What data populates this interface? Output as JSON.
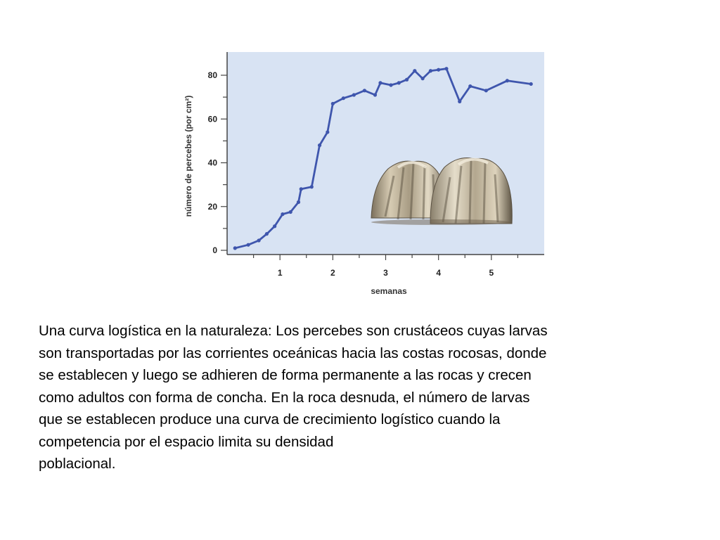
{
  "chart_data": {
    "type": "line",
    "title": "",
    "xlabel": "semanas",
    "ylabel": "número de percebes (por cm²)",
    "xlim": [
      0,
      6
    ],
    "ylim": [
      0,
      90
    ],
    "x_ticks": [
      1,
      2,
      3,
      4,
      5
    ],
    "x_tick_labels": [
      "1",
      "2",
      "3",
      "4",
      "5"
    ],
    "y_ticks": [
      0,
      20,
      40,
      60,
      80
    ],
    "y_tick_labels": [
      "0",
      "20",
      "40",
      "60",
      "80"
    ],
    "grid": false,
    "legend": "none",
    "series": [
      {
        "points": [
          [
            0.15,
            1
          ],
          [
            0.4,
            2.5
          ],
          [
            0.6,
            4.5
          ],
          [
            0.75,
            7.5
          ],
          [
            0.9,
            11
          ],
          [
            1.05,
            16.5
          ],
          [
            1.2,
            17.5
          ],
          [
            1.35,
            22
          ],
          [
            1.4,
            28
          ],
          [
            1.6,
            29
          ],
          [
            1.75,
            48
          ],
          [
            1.9,
            54
          ],
          [
            2.0,
            67
          ],
          [
            2.2,
            69.5
          ],
          [
            2.4,
            71
          ],
          [
            2.6,
            73
          ],
          [
            2.8,
            71
          ],
          [
            2.9,
            76.5
          ],
          [
            3.1,
            75.5
          ],
          [
            3.25,
            76.5
          ],
          [
            3.4,
            78
          ],
          [
            3.55,
            82
          ],
          [
            3.7,
            78.5
          ],
          [
            3.85,
            82
          ],
          [
            4.0,
            82.5
          ],
          [
            4.15,
            83
          ],
          [
            4.4,
            68
          ],
          [
            4.6,
            75
          ],
          [
            4.9,
            73
          ],
          [
            5.3,
            77.5
          ],
          [
            5.75,
            76
          ]
        ]
      }
    ],
    "colors": {
      "plot_background": "#d8e3f3",
      "line": "#3f56ad",
      "axis": "#444444"
    }
  },
  "caption": {
    "lines": [
      "Una curva logística en la naturaleza: Los percebes son crustáceos cuyas larvas",
      "son transportadas por las corrientes oceánicas hacia las costas rocosas, donde",
      "se establecen y luego se adhieren de forma permanente a las rocas y crecen",
      "como adultos con forma de concha. En la roca desnuda, el número de larvas",
      "que se establecen produce una curva de crecimiento logístico cuando la",
      "competencia por el espacio  limita su densidad",
      "poblacional."
    ]
  },
  "illustration": {
    "icon": "barnacle-illustration"
  }
}
